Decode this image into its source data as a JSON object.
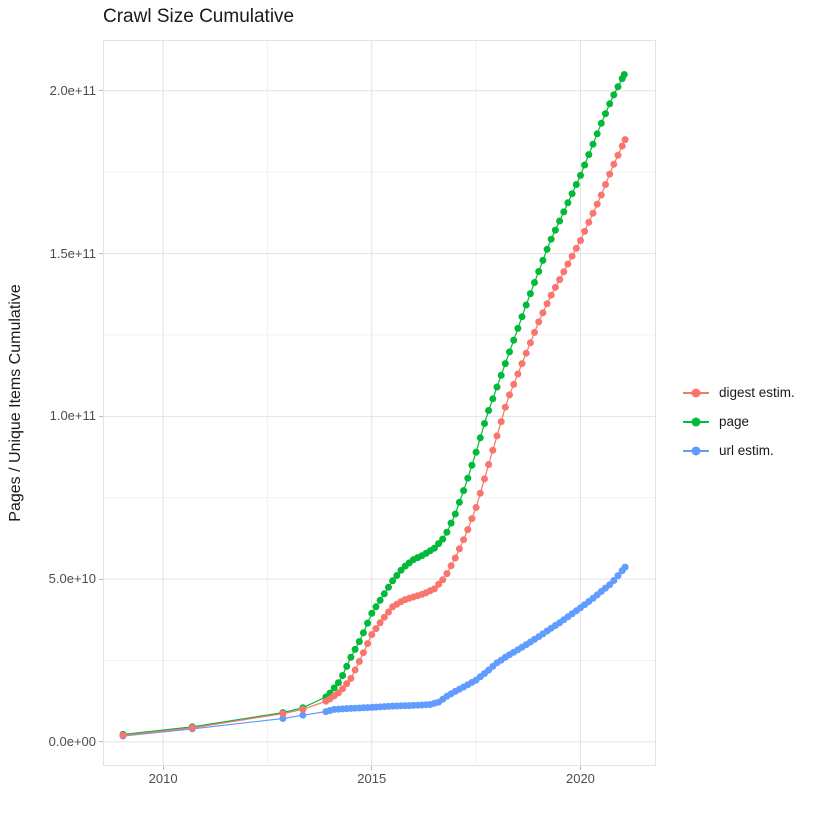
{
  "title": "Crawl Size Cumulative",
  "colors": {
    "digest": "#F8766D",
    "page": "#00BA38",
    "url": "#619CFF",
    "grid_major": "#e3e3e3",
    "grid_minor": "#f2f2f2",
    "panel_border": "#e3e3e3",
    "tick_mark": "#b9b9b9",
    "axis_text": "#4d4d4d",
    "text": "#1a1a1a",
    "background": "#ffffff"
  },
  "legend": {
    "position": "right",
    "items": [
      {
        "label": "digest estim.",
        "color": "#F8766D"
      },
      {
        "label": "page",
        "color": "#00BA38"
      },
      {
        "label": "url estim.",
        "color": "#619CFF"
      }
    ]
  },
  "chart_data": {
    "type": "line",
    "title": "Crawl Size Cumulative",
    "xlabel": "",
    "ylabel": "Pages / Unique Items Cumulative",
    "grid": true,
    "legend_position": "right",
    "xlim": [
      2008.56,
      2021.81
    ],
    "ylim": [
      -7400000000.0,
      215600000000.0
    ],
    "x_ticks": [
      2010,
      2015,
      2020
    ],
    "x_tick_labels": [
      "2010",
      "2015",
      "2020"
    ],
    "x_minor_ticks": [
      2012.5,
      2017.5
    ],
    "y_ticks": [
      0,
      50000000000.0,
      100000000000.0,
      150000000000.0,
      200000000000.0
    ],
    "y_tick_labels": [
      "0.0e+00",
      "5.0e+10",
      "1.0e+11",
      "1.5e+11",
      "2.0e+11"
    ],
    "y_minor_ticks": [
      25000000000.0,
      75000000000.0,
      125000000000.0,
      175000000000.0
    ],
    "marker_interval_years": 0.1,
    "dense_from_year": 2013.9,
    "series": [
      {
        "name": "digest estim.",
        "color": "#F8766D",
        "points": [
          [
            2009.04,
            2000000000.0
          ],
          [
            2010.7,
            4300000000.0
          ],
          [
            2012.87,
            8700000000.0
          ],
          [
            2013.35,
            10000000000.0
          ],
          [
            2013.9,
            12500000000.0
          ],
          [
            2014.0,
            13200000000.0
          ],
          [
            2014.25,
            15500000000.0
          ],
          [
            2014.5,
            19500000000.0
          ],
          [
            2014.75,
            26000000000.0
          ],
          [
            2015.0,
            33000000000.0
          ],
          [
            2015.25,
            37500000000.0
          ],
          [
            2015.5,
            41500000000.0
          ],
          [
            2015.75,
            43500000000.0
          ],
          [
            2016.0,
            44500000000.0
          ],
          [
            2016.25,
            45500000000.0
          ],
          [
            2016.5,
            47000000000.0
          ],
          [
            2016.75,
            50500000000.0
          ],
          [
            2017.0,
            56500000000.0
          ],
          [
            2017.25,
            63500000000.0
          ],
          [
            2017.5,
            72000000000.0
          ],
          [
            2017.75,
            83000000000.0
          ],
          [
            2018.0,
            94000000000.0
          ],
          [
            2018.25,
            105000000000.0
          ],
          [
            2018.5,
            113000000000.0
          ],
          [
            2018.75,
            121000000000.0
          ],
          [
            2019.0,
            129000000000.0
          ],
          [
            2019.25,
            136000000000.0
          ],
          [
            2019.5,
            142000000000.0
          ],
          [
            2019.75,
            148000000000.0
          ],
          [
            2020.0,
            154000000000.0
          ],
          [
            2020.25,
            161000000000.0
          ],
          [
            2020.5,
            168000000000.0
          ],
          [
            2020.75,
            176000000000.0
          ],
          [
            2021.07,
            185000000000.0
          ]
        ]
      },
      {
        "name": "page",
        "color": "#00BA38",
        "points": [
          [
            2009.04,
            2300000000.0
          ],
          [
            2010.7,
            4600000000.0
          ],
          [
            2012.87,
            9000000000.0
          ],
          [
            2013.35,
            10500000000.0
          ],
          [
            2013.9,
            13800000000.0
          ],
          [
            2014.0,
            15000000000.0
          ],
          [
            2014.25,
            19000000000.0
          ],
          [
            2014.5,
            26000000000.0
          ],
          [
            2014.75,
            32000000000.0
          ],
          [
            2015.0,
            39500000000.0
          ],
          [
            2015.25,
            44500000000.0
          ],
          [
            2015.5,
            49500000000.0
          ],
          [
            2015.75,
            53500000000.0
          ],
          [
            2016.0,
            56000000000.0
          ],
          [
            2016.25,
            57500000000.0
          ],
          [
            2016.5,
            59500000000.0
          ],
          [
            2016.75,
            63000000000.0
          ],
          [
            2017.0,
            70000000000.0
          ],
          [
            2017.25,
            79000000000.0
          ],
          [
            2017.5,
            89000000000.0
          ],
          [
            2017.75,
            100000000000.0
          ],
          [
            2018.0,
            109000000000.0
          ],
          [
            2018.25,
            118000000000.0
          ],
          [
            2018.5,
            127000000000.0
          ],
          [
            2018.75,
            136000000000.0
          ],
          [
            2019.0,
            144500000000.0
          ],
          [
            2019.25,
            153000000000.0
          ],
          [
            2019.5,
            160000000000.0
          ],
          [
            2019.75,
            167000000000.0
          ],
          [
            2020.0,
            174000000000.0
          ],
          [
            2020.25,
            182000000000.0
          ],
          [
            2020.5,
            190000000000.0
          ],
          [
            2020.75,
            197500000000.0
          ],
          [
            2021.05,
            205000000000.0
          ]
        ]
      },
      {
        "name": "url estim.",
        "color": "#619CFF",
        "points": [
          [
            2009.04,
            1800000000.0
          ],
          [
            2010.7,
            4000000000.0
          ],
          [
            2012.87,
            7200000000.0
          ],
          [
            2013.35,
            8200000000.0
          ],
          [
            2013.9,
            9300000000.0
          ],
          [
            2014.1,
            10000000000.0
          ],
          [
            2014.5,
            10300000000.0
          ],
          [
            2015.0,
            10600000000.0
          ],
          [
            2015.5,
            11000000000.0
          ],
          [
            2016.0,
            11200000000.0
          ],
          [
            2016.4,
            11500000000.0
          ],
          [
            2016.6,
            12200000000.0
          ],
          [
            2016.8,
            14000000000.0
          ],
          [
            2017.0,
            15500000000.0
          ],
          [
            2017.25,
            17200000000.0
          ],
          [
            2017.5,
            19000000000.0
          ],
          [
            2017.75,
            21500000000.0
          ],
          [
            2018.0,
            24300000000.0
          ],
          [
            2018.25,
            26400000000.0
          ],
          [
            2018.5,
            28300000000.0
          ],
          [
            2018.75,
            30300000000.0
          ],
          [
            2019.0,
            32300000000.0
          ],
          [
            2019.25,
            34500000000.0
          ],
          [
            2019.5,
            36600000000.0
          ],
          [
            2019.75,
            38900000000.0
          ],
          [
            2020.0,
            41200000000.0
          ],
          [
            2020.25,
            43600000000.0
          ],
          [
            2020.5,
            46200000000.0
          ],
          [
            2020.75,
            48800000000.0
          ],
          [
            2021.07,
            53700000000.0
          ]
        ]
      }
    ]
  }
}
